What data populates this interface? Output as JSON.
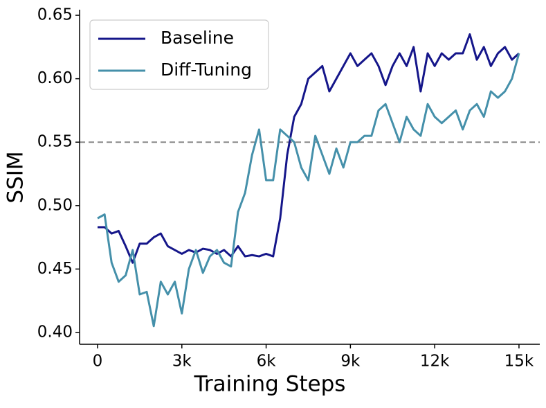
{
  "chart_data": {
    "type": "line",
    "xlabel": "Training Steps",
    "ylabel": "SSIM",
    "x": [
      0,
      250,
      500,
      750,
      1000,
      1250,
      1500,
      1750,
      2000,
      2250,
      2500,
      2750,
      3000,
      3250,
      3500,
      3750,
      4000,
      4250,
      4500,
      4750,
      5000,
      5250,
      5500,
      5750,
      6000,
      6250,
      6500,
      6750,
      7000,
      7250,
      7500,
      7750,
      8000,
      8250,
      8500,
      8750,
      9000,
      9250,
      9500,
      9750,
      10000,
      10250,
      10500,
      10750,
      11000,
      11250,
      11500,
      11750,
      12000,
      12250,
      12500,
      12750,
      13000,
      13250,
      13500,
      13750,
      14000,
      14250,
      14500,
      14750,
      15000
    ],
    "series": [
      {
        "name": "Baseline",
        "color": "#15168a",
        "values": [
          0.483,
          0.483,
          0.478,
          0.48,
          0.468,
          0.455,
          0.47,
          0.47,
          0.475,
          0.478,
          0.468,
          0.465,
          0.462,
          0.465,
          0.463,
          0.466,
          0.465,
          0.462,
          0.465,
          0.46,
          0.468,
          0.46,
          0.461,
          0.46,
          0.462,
          0.46,
          0.49,
          0.54,
          0.57,
          0.58,
          0.6,
          0.605,
          0.61,
          0.59,
          0.6,
          0.61,
          0.62,
          0.61,
          0.615,
          0.62,
          0.61,
          0.595,
          0.61,
          0.62,
          0.61,
          0.625,
          0.59,
          0.62,
          0.61,
          0.62,
          0.615,
          0.62,
          0.62,
          0.635,
          0.615,
          0.625,
          0.61,
          0.62,
          0.625,
          0.615,
          0.62
        ]
      },
      {
        "name": "Diff-Tuning",
        "color": "#4590aa",
        "values": [
          0.49,
          0.493,
          0.455,
          0.44,
          0.445,
          0.465,
          0.43,
          0.432,
          0.405,
          0.44,
          0.43,
          0.44,
          0.415,
          0.45,
          0.465,
          0.447,
          0.46,
          0.465,
          0.455,
          0.452,
          0.495,
          0.51,
          0.54,
          0.56,
          0.52,
          0.52,
          0.56,
          0.555,
          0.55,
          0.53,
          0.52,
          0.555,
          0.54,
          0.525,
          0.545,
          0.53,
          0.55,
          0.55,
          0.555,
          0.555,
          0.575,
          0.58,
          0.565,
          0.55,
          0.57,
          0.56,
          0.555,
          0.58,
          0.57,
          0.565,
          0.57,
          0.575,
          0.56,
          0.575,
          0.58,
          0.57,
          0.59,
          0.585,
          0.59,
          0.6,
          0.62
        ]
      }
    ],
    "xlim": [
      -640,
      15740
    ],
    "ylim": [
      0.3907,
      0.6544
    ],
    "xticks": [
      0,
      {
        "value": 3000,
        "label": "3k"
      },
      {
        "value": 6000,
        "label": "6k"
      },
      {
        "value": 9000,
        "label": "9k"
      },
      {
        "value": 12000,
        "label": "12k"
      },
      {
        "value": 15000,
        "label": "15k"
      }
    ],
    "yticks": [
      {
        "value": 0.4,
        "label": "0.40"
      },
      0.45,
      {
        "value": 0.5,
        "label": "0.50"
      },
      0.55,
      {
        "value": 0.6,
        "label": "0.60"
      },
      0.65
    ],
    "hline": 0.55,
    "hline_color": "#888888",
    "legend": "upper left",
    "grid": false
  }
}
